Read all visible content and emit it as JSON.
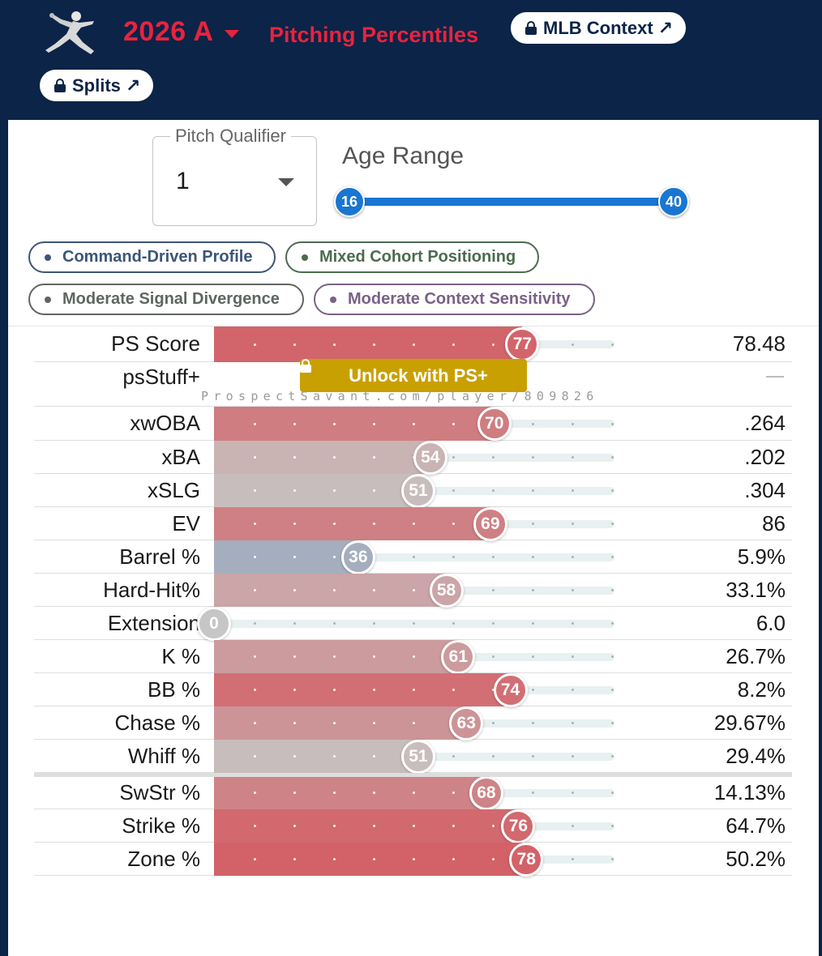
{
  "header": {
    "season": "2026 A",
    "title": "Pitching Percentiles",
    "mlb_context": "MLB Context ↗",
    "splits": "Splits ↗"
  },
  "controls": {
    "pitch_qualifier_label": "Pitch Qualifier",
    "pitch_qualifier_value": "1",
    "age_range_label": "Age Range",
    "age_min": "16",
    "age_max": "40"
  },
  "tags": [
    {
      "label": "Command-Driven Profile",
      "color": "#3c5578"
    },
    {
      "label": "Mixed Cohort Positioning",
      "color": "#4c6b50"
    },
    {
      "label": "Moderate Signal Divergence",
      "color": "#5f6660"
    },
    {
      "label": "Moderate Context Sensitivity",
      "color": "#7a6186"
    }
  ],
  "locked": {
    "unlock_label": "Unlock with PS+",
    "watermark": "ProspectSavant.com/player/809826"
  },
  "metrics": [
    {
      "label": "PS Score",
      "percentile": 77,
      "value": "78.48"
    },
    {
      "label": "psStuff+",
      "percentile": null,
      "value": "",
      "locked": true
    },
    {
      "label": "xwOBA",
      "percentile": 70,
      "value": ".264"
    },
    {
      "label": "xBA",
      "percentile": 54,
      "value": ".202"
    },
    {
      "label": "xSLG",
      "percentile": 51,
      "value": ".304"
    },
    {
      "label": "EV",
      "percentile": 69,
      "value": "86"
    },
    {
      "label": "Barrel %",
      "percentile": 36,
      "value": "5.9%"
    },
    {
      "label": "Hard-Hit%",
      "percentile": 58,
      "value": "33.1%"
    },
    {
      "label": "Extension",
      "percentile": 0,
      "value": "6.0"
    },
    {
      "label": "K %",
      "percentile": 61,
      "value": "26.7%"
    },
    {
      "label": "BB %",
      "percentile": 74,
      "value": "8.2%"
    },
    {
      "label": "Chase %",
      "percentile": 63,
      "value": "29.67%"
    },
    {
      "label": "Whiff %",
      "percentile": 51,
      "value": "29.4%"
    },
    {
      "label": "SwStr %",
      "percentile": 68,
      "value": "14.13%"
    },
    {
      "label": "Strike %",
      "percentile": 76,
      "value": "64.7%"
    },
    {
      "label": "Zone %",
      "percentile": 78,
      "value": "50.2%"
    }
  ],
  "colors": {
    "navy": "#0b2447",
    "brand_red": "#e8233f",
    "slider_blue": "#1976d2",
    "unlock_gold": "#c9a001"
  }
}
